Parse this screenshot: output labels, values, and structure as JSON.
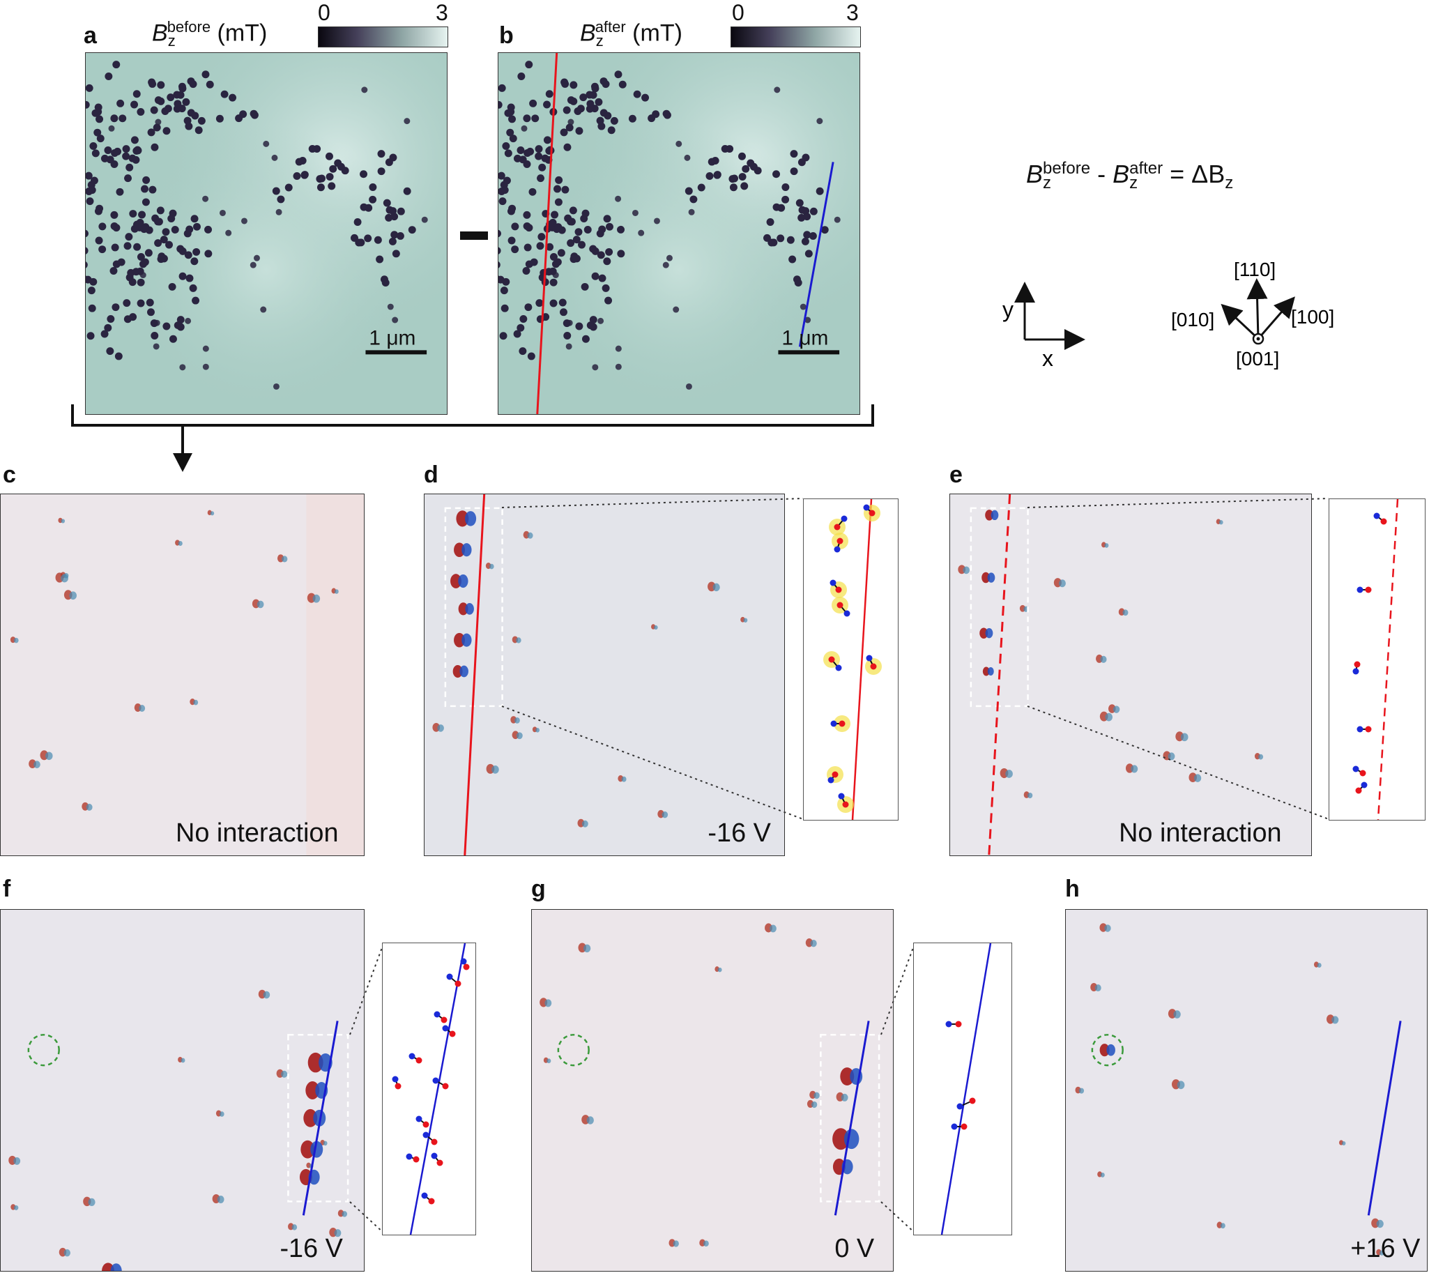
{
  "panels": {
    "a": {
      "label": "a",
      "symbol": "B",
      "sub": "z",
      "sup": "before",
      "unit": "(mT)",
      "scale_bar": "1 μm"
    },
    "b": {
      "label": "b",
      "symbol": "B",
      "sub": "z",
      "sup": "after",
      "unit": "(mT)",
      "scale_bar": "1 μm"
    },
    "c": {
      "label": "c",
      "caption": "No interaction"
    },
    "d": {
      "label": "d",
      "caption": "-16 V"
    },
    "e": {
      "label": "e",
      "caption": "No interaction"
    },
    "f": {
      "label": "f",
      "caption": "-16 V"
    },
    "g": {
      "label": "g",
      "caption": "0 V"
    },
    "h": {
      "label": "h",
      "caption": "+16 V"
    }
  },
  "colorbar": {
    "min": "0",
    "max": "3"
  },
  "minus_sign": "—",
  "equation": {
    "t1": "B",
    "t1_sub": "z",
    "t1_sup": "before",
    "op": " - ",
    "t2": "B",
    "t2_sub": "z",
    "t2_sup": "after",
    "eq": " = ",
    "t3": "ΔB",
    "t3_sub": "z"
  },
  "axes": {
    "y": "y",
    "x": "x"
  },
  "crystal": {
    "d1": "[110]",
    "d2": "[010]",
    "d3": "[100]",
    "d4": "[001]"
  },
  "colors": {
    "map_bg": "#a9ccc4",
    "vortex": "#2a2440",
    "diff_bg": "#e8e6ec",
    "red_line": "#e8141c",
    "blue_line": "#1a1ad0",
    "red_dot": "#e8141c",
    "blue_dot": "#1a2ad8",
    "yellow_halo": "#f3e04a",
    "green_circle": "#3a9a3a"
  }
}
